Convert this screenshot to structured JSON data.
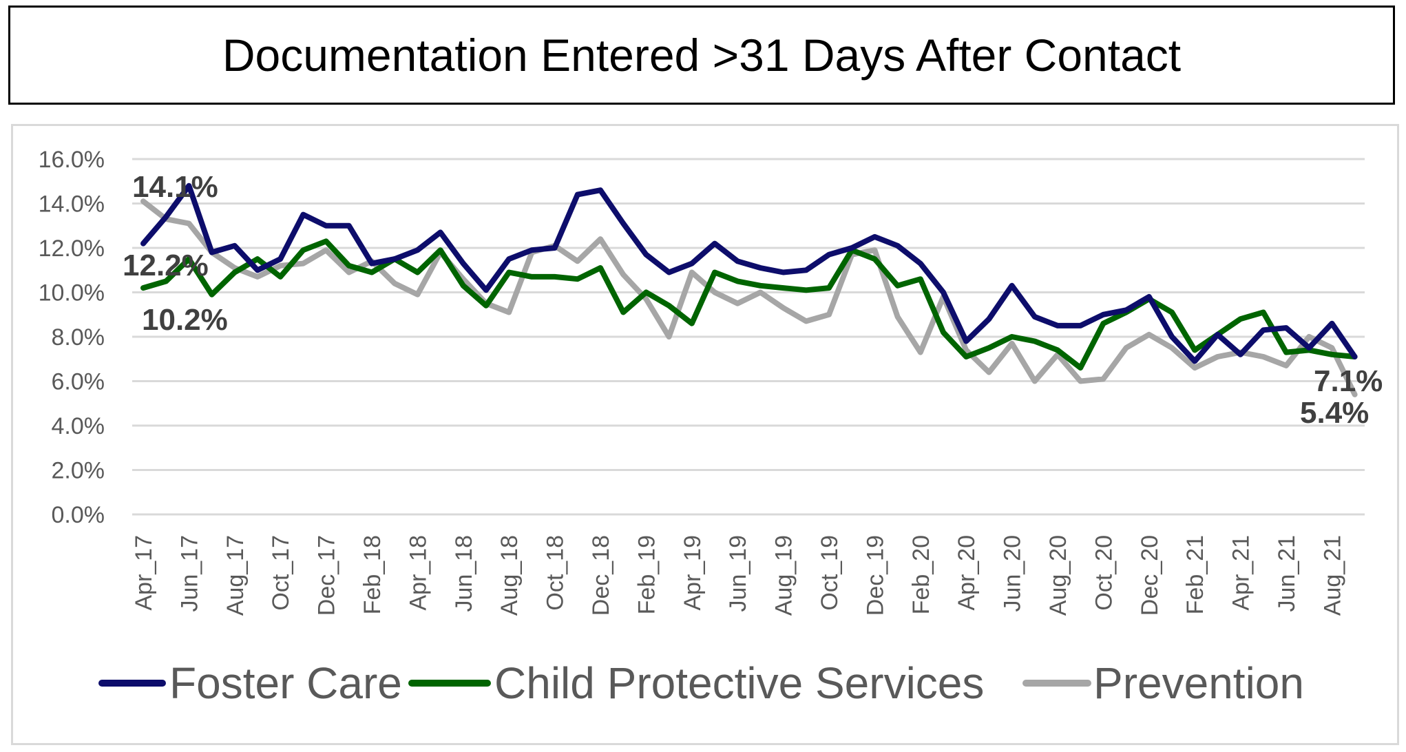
{
  "title": "Documentation Entered >31 Days After Contact",
  "chart_data": {
    "type": "line",
    "title": "Documentation Entered >31 Days After Contact",
    "xlabel": "",
    "ylabel": "",
    "ylim": [
      0,
      16
    ],
    "y_ticks": [
      "0.0%",
      "2.0%",
      "4.0%",
      "6.0%",
      "8.0%",
      "10.0%",
      "12.0%",
      "14.0%",
      "16.0%"
    ],
    "y_tick_values": [
      0,
      2,
      4,
      6,
      8,
      10,
      12,
      14,
      16
    ],
    "grid": true,
    "legend_position": "bottom",
    "x": [
      "Apr_17",
      "May_17",
      "Jun_17",
      "Jul_17",
      "Aug_17",
      "Sep_17",
      "Oct_17",
      "Nov_17",
      "Dec_17",
      "Jan_18",
      "Feb_18",
      "Mar_18",
      "Apr_18",
      "May_18",
      "Jun_18",
      "Jul_18",
      "Aug_18",
      "Sep_18",
      "Oct_18",
      "Nov_18",
      "Dec_18",
      "Jan_19",
      "Feb_19",
      "Mar_19",
      "Apr_19",
      "May_19",
      "Jun_19",
      "Jul_19",
      "Aug_19",
      "Sep_19",
      "Oct_19",
      "Nov_19",
      "Dec_19",
      "Jan_20",
      "Feb_20",
      "Mar_20",
      "Apr_20",
      "May_20",
      "Jun_20",
      "Jul_20",
      "Aug_20",
      "Sep_20",
      "Oct_20",
      "Nov_20",
      "Dec_20",
      "Jan_21",
      "Feb_21",
      "Mar_21",
      "Apr_21",
      "May_21",
      "Jun_21",
      "Jul_21",
      "Aug_21",
      "Sep_21"
    ],
    "x_tick_labels": [
      "Apr_17",
      "Jun_17",
      "Aug_17",
      "Oct_17",
      "Dec_17",
      "Feb_18",
      "Apr_18",
      "Jun_18",
      "Aug_18",
      "Oct_18",
      "Dec_18",
      "Feb_19",
      "Apr_19",
      "Jun_19",
      "Aug_19",
      "Oct_19",
      "Dec_19",
      "Feb_20",
      "Apr_20",
      "Jun_20",
      "Aug_20",
      "Oct_20",
      "Dec_20",
      "Feb_21",
      "Apr_21",
      "Jun_21",
      "Aug_21"
    ],
    "series": [
      {
        "name": "Foster Care",
        "color": "#0d0d6b",
        "values": [
          12.2,
          13.4,
          14.8,
          11.8,
          12.1,
          11.0,
          11.5,
          13.5,
          13.0,
          13.0,
          11.3,
          11.5,
          11.9,
          12.7,
          11.3,
          10.1,
          11.5,
          11.9,
          12.0,
          14.4,
          14.6,
          13.1,
          11.7,
          10.9,
          11.3,
          12.2,
          11.4,
          11.1,
          10.9,
          11.0,
          11.7,
          12.0,
          12.5,
          12.1,
          11.3,
          10.0,
          7.8,
          8.8,
          10.3,
          8.9,
          8.5,
          8.5,
          9.0,
          9.2,
          9.8,
          8.0,
          6.9,
          8.1,
          7.2,
          8.3,
          8.4,
          7.5,
          8.6,
          7.1
        ]
      },
      {
        "name": "Child Protective Services",
        "color": "#006400",
        "values": [
          10.2,
          10.5,
          11.5,
          9.9,
          10.9,
          11.5,
          10.7,
          11.9,
          12.3,
          11.2,
          10.9,
          11.5,
          10.9,
          11.9,
          10.3,
          9.4,
          10.9,
          10.7,
          10.7,
          10.6,
          11.1,
          9.1,
          10.0,
          9.4,
          8.6,
          10.9,
          10.5,
          10.3,
          10.2,
          10.1,
          10.2,
          11.9,
          11.5,
          10.3,
          10.6,
          8.2,
          7.1,
          7.5,
          8.0,
          7.8,
          7.4,
          6.6,
          8.6,
          9.1,
          9.7,
          9.1,
          7.4,
          8.1,
          8.8,
          9.1,
          7.3,
          7.4,
          7.2,
          7.1
        ]
      },
      {
        "name": "Prevention",
        "color": "#a6a6a6",
        "values": [
          14.1,
          13.3,
          13.1,
          11.8,
          11.1,
          10.7,
          11.2,
          11.3,
          11.9,
          10.9,
          11.4,
          10.4,
          9.9,
          11.8,
          10.6,
          9.5,
          9.1,
          11.8,
          12.1,
          11.4,
          12.4,
          10.8,
          9.7,
          8.0,
          10.9,
          10.0,
          9.5,
          10.0,
          9.3,
          8.7,
          9.0,
          11.7,
          11.9,
          8.9,
          7.3,
          9.8,
          7.4,
          6.4,
          7.7,
          6.0,
          7.2,
          6.0,
          6.1,
          7.5,
          8.1,
          7.5,
          6.6,
          7.1,
          7.3,
          7.1,
          6.7,
          8.0,
          7.5,
          5.4
        ]
      }
    ],
    "annotations": [
      {
        "text": "14.1%",
        "series": "Prevention",
        "index": 0
      },
      {
        "text": "12.2%",
        "series": "Foster Care",
        "index": 0
      },
      {
        "text": "10.2%",
        "series": "Child Protective Services",
        "index": 0
      },
      {
        "text": "7.1%",
        "series": "Foster Care",
        "index": 53
      },
      {
        "text": "5.4%",
        "series": "Prevention",
        "index": 53
      }
    ]
  }
}
